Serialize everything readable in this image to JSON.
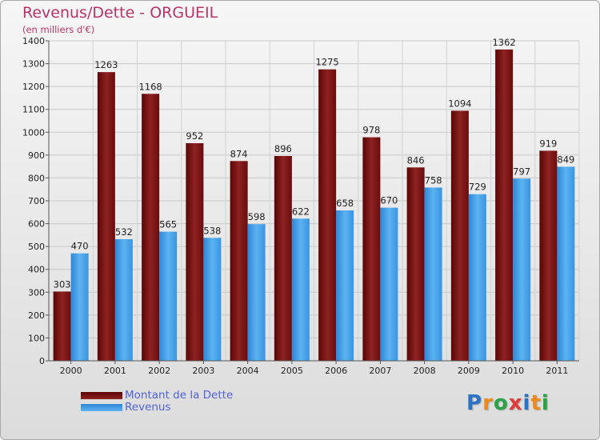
{
  "chart_data": {
    "type": "bar",
    "title": "Revenus/Dette - ORGUEIL",
    "subtitle": "(en milliers d'€)",
    "categories": [
      "2000",
      "2001",
      "2002",
      "2003",
      "2004",
      "2005",
      "2006",
      "2007",
      "2008",
      "2009",
      "2010",
      "2011"
    ],
    "series": [
      {
        "name": "Montant de la Dette",
        "color": "#7a1212",
        "values": [
          303,
          1263,
          1168,
          952,
          874,
          896,
          1275,
          978,
          846,
          1094,
          1362,
          919
        ]
      },
      {
        "name": "Revenus",
        "color": "#3d9de6",
        "values": [
          470,
          532,
          565,
          538,
          598,
          622,
          658,
          670,
          758,
          729,
          797,
          849
        ]
      }
    ],
    "ylim": [
      0,
      1400
    ],
    "yticks": [
      0,
      100,
      200,
      300,
      400,
      500,
      600,
      700,
      800,
      900,
      1000,
      1100,
      1200,
      1300,
      1400
    ],
    "grid": true,
    "legend_position": "bottom-left"
  },
  "logo": {
    "letters": [
      "P",
      "r",
      "o",
      "x",
      "i",
      "t",
      "i"
    ],
    "colors": [
      "#2b73c9",
      "#ee8a1c",
      "#2aa347",
      "#e23a3a",
      "#2b73c9",
      "#ee8a1c",
      "#2aa347"
    ]
  }
}
